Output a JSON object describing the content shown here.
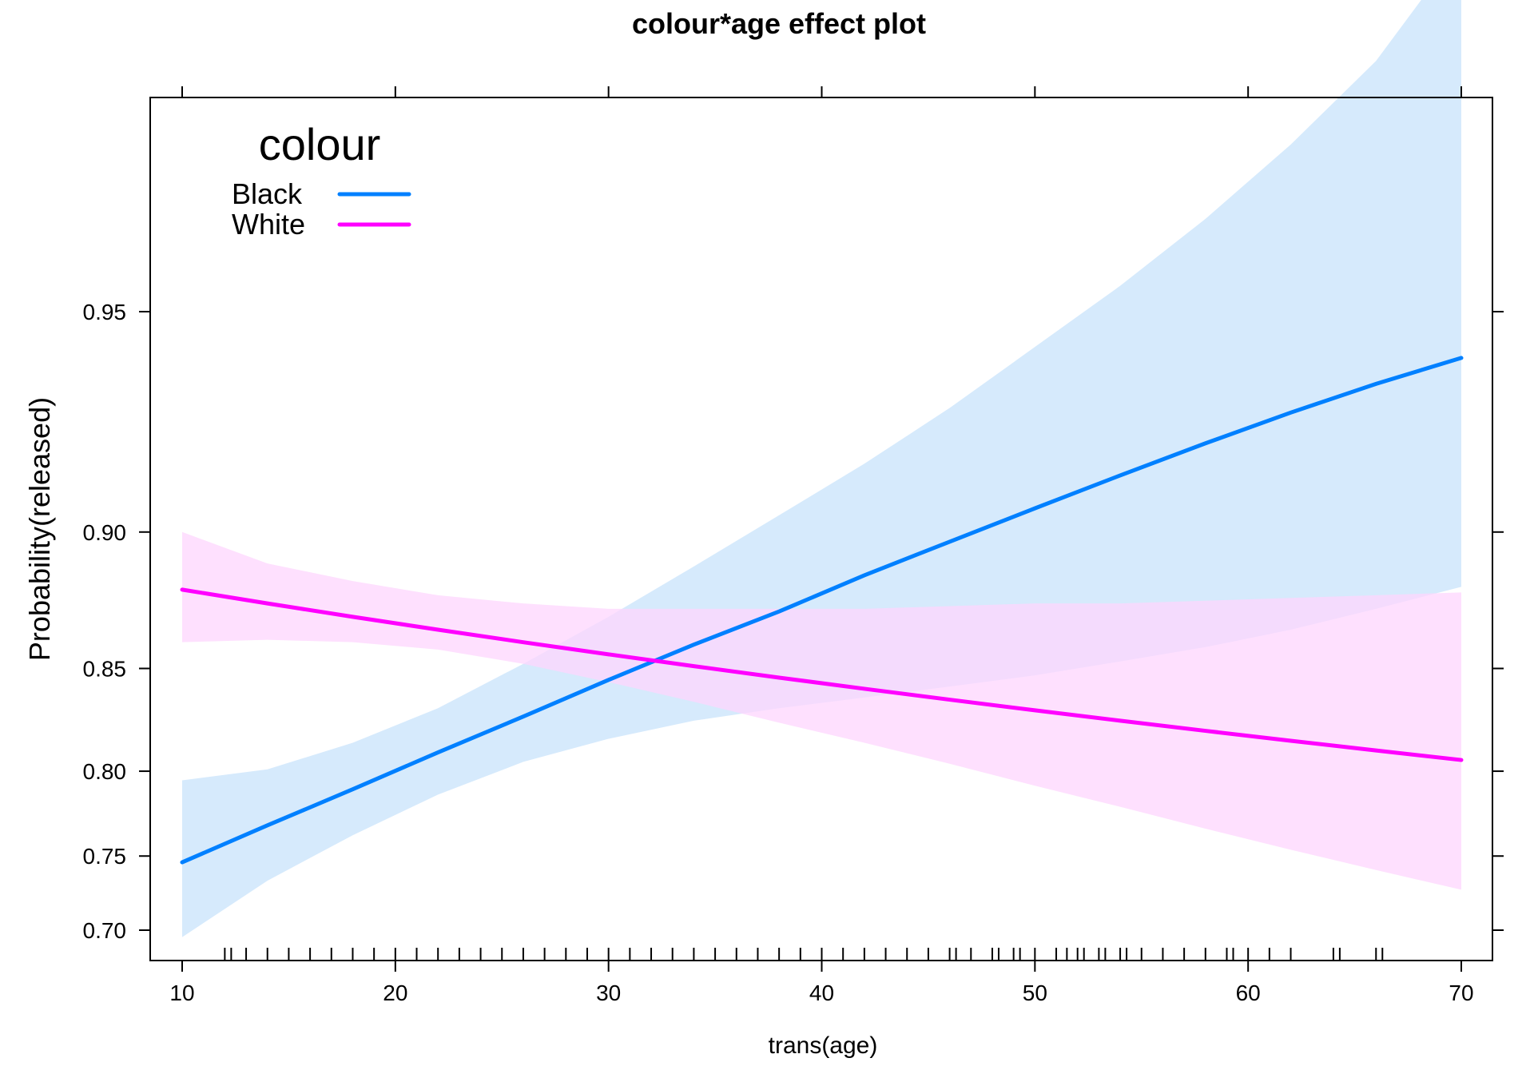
{
  "chart_data": {
    "type": "line",
    "title": "colour*age effect plot",
    "xlabel": "trans(age)",
    "ylabel": "Probability(released)",
    "xlim": [
      8.5,
      71.5
    ],
    "xticks": [
      10,
      20,
      30,
      40,
      50,
      60,
      70
    ],
    "yticks": [
      0.7,
      0.75,
      0.8,
      0.85,
      0.9,
      0.95
    ],
    "ytick_labels": [
      "0.70",
      "0.75",
      "0.80",
      "0.85",
      "0.90",
      "0.95"
    ],
    "grid": false,
    "legend": {
      "title": "colour",
      "position": "top-left"
    },
    "x": [
      10,
      14,
      18,
      22,
      26,
      30,
      34,
      38,
      42,
      46,
      50,
      54,
      58,
      62,
      66,
      70
    ],
    "series": [
      {
        "name": "Black",
        "color": "#0080ff",
        "band_color": "#d6eafc",
        "values": [
          0.746,
          0.769,
          0.79,
          0.81,
          0.828,
          0.845,
          0.86,
          0.873,
          0.886,
          0.897,
          0.907,
          0.916,
          0.924,
          0.931,
          0.937,
          0.942
        ],
        "lower": [
          0.695,
          0.734,
          0.763,
          0.787,
          0.805,
          0.817,
          0.826,
          0.832,
          0.837,
          0.842,
          0.847,
          0.853,
          0.859,
          0.866,
          0.874,
          0.882
        ],
        "upper": [
          0.795,
          0.801,
          0.815,
          0.832,
          0.852,
          0.871,
          0.889,
          0.905,
          0.919,
          0.932,
          0.944,
          0.954,
          0.963,
          0.971,
          0.978,
          0.985
        ]
      },
      {
        "name": "White",
        "color": "#ff00ff",
        "band_color": "#fed6fe",
        "values": [
          0.881,
          0.876,
          0.871,
          0.866,
          0.861,
          0.856,
          0.851,
          0.846,
          0.841,
          0.836,
          0.831,
          0.826,
          0.821,
          0.816,
          0.811,
          0.806
        ],
        "lower": [
          0.861,
          0.862,
          0.861,
          0.858,
          0.852,
          0.844,
          0.835,
          0.825,
          0.815,
          0.804,
          0.792,
          0.78,
          0.767,
          0.754,
          0.741,
          0.728
        ],
        "upper": [
          0.9,
          0.89,
          0.884,
          0.879,
          0.876,
          0.874,
          0.874,
          0.874,
          0.874,
          0.875,
          0.876,
          0.876,
          0.877,
          0.878,
          0.879,
          0.88
        ]
      }
    ],
    "rug": [
      12,
      12.3,
      13,
      14,
      15,
      16,
      17,
      18,
      19,
      20,
      21,
      22,
      23,
      24,
      25,
      26,
      27,
      28,
      29,
      30,
      31,
      32,
      33,
      34,
      35,
      36,
      37,
      38,
      39,
      40,
      41,
      42,
      43,
      44,
      45,
      46,
      46.3,
      47,
      48,
      48.3,
      49,
      49.3,
      50,
      51,
      51.5,
      52,
      52.3,
      53,
      53.3,
      54,
      54.3,
      55,
      56,
      57,
      58,
      59,
      59.3,
      60,
      61,
      62,
      64,
      64.3,
      66,
      66.3
    ]
  }
}
